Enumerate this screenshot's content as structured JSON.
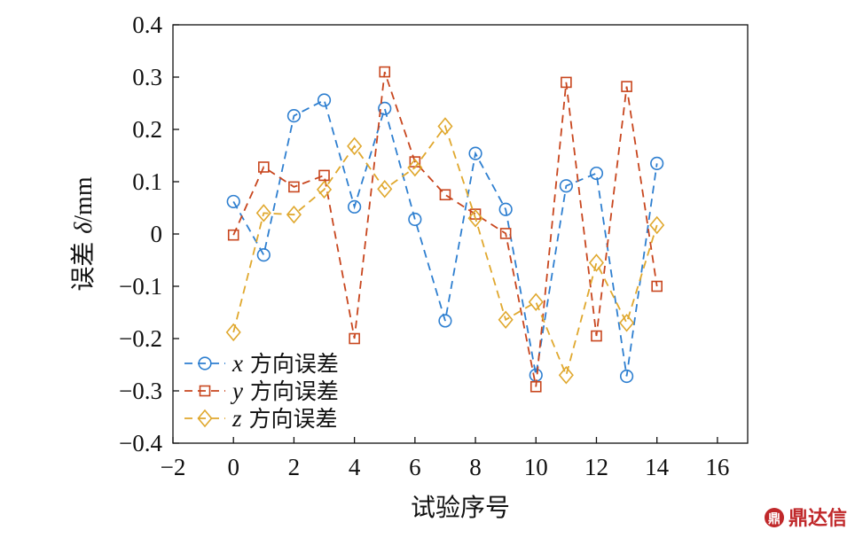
{
  "chart_data": {
    "type": "line",
    "xlabel": "试验序号",
    "ylabel_main": "误差 ",
    "ylabel_symbol": "δ",
    "ylabel_unit": "/mm",
    "xlim": [
      -2,
      17
    ],
    "ylim": [
      -0.4,
      0.4
    ],
    "xticks": [
      "−2",
      "0",
      "2",
      "4",
      "6",
      "8",
      "10",
      "12",
      "14",
      "16"
    ],
    "xtick_values": [
      -2,
      0,
      2,
      4,
      6,
      8,
      10,
      12,
      14,
      16
    ],
    "yticks": [
      "0.4",
      "0.3",
      "0.2",
      "0.1",
      "0",
      "−0.1",
      "−0.2",
      "−0.3",
      "−0.4"
    ],
    "ytick_values": [
      0.4,
      0.3,
      0.2,
      0.1,
      0,
      -0.1,
      -0.2,
      -0.3,
      -0.4
    ],
    "grid": false,
    "legend_position": "bottom-left",
    "series": [
      {
        "name_var": "x",
        "name_text": " 方向误差",
        "color": "#2e7fd0",
        "marker": "circle",
        "x": [
          0,
          1,
          2,
          3,
          4,
          5,
          6,
          7,
          8,
          9,
          10,
          11,
          12,
          13,
          14,
          15
        ],
        "values": [
          0.062,
          -0.04,
          0.226,
          0.256,
          0.052,
          0.24,
          0.028,
          -0.166,
          0.154,
          0.047,
          -0.27,
          0.092,
          0.116,
          -0.272,
          0.135,
          null
        ]
      },
      {
        "name_var": "y",
        "name_text": " 方向误差",
        "color": "#c8461e",
        "marker": "square",
        "x": [
          0,
          1,
          2,
          3,
          4,
          5,
          6,
          7,
          8,
          9,
          10,
          11,
          12,
          13,
          14,
          15
        ],
        "values": [
          -0.002,
          0.128,
          0.09,
          0.112,
          -0.2,
          0.31,
          0.138,
          0.075,
          0.038,
          0.001,
          -0.292,
          0.29,
          -0.195,
          0.282,
          -0.1,
          null
        ]
      },
      {
        "name_var": "z",
        "name_text": " 方向误差",
        "color": "#e0a82e",
        "marker": "diamond",
        "x": [
          0,
          1,
          2,
          3,
          4,
          5,
          6,
          7,
          8,
          9,
          10,
          11,
          12,
          13,
          14,
          15
        ],
        "values": [
          -0.188,
          0.04,
          0.037,
          0.085,
          0.168,
          0.086,
          0.127,
          0.206,
          0.03,
          -0.164,
          -0.13,
          -0.27,
          -0.055,
          -0.17,
          0.017,
          null
        ]
      }
    ]
  },
  "watermark": {
    "text": "鼎达信",
    "color": "#c0282a"
  }
}
